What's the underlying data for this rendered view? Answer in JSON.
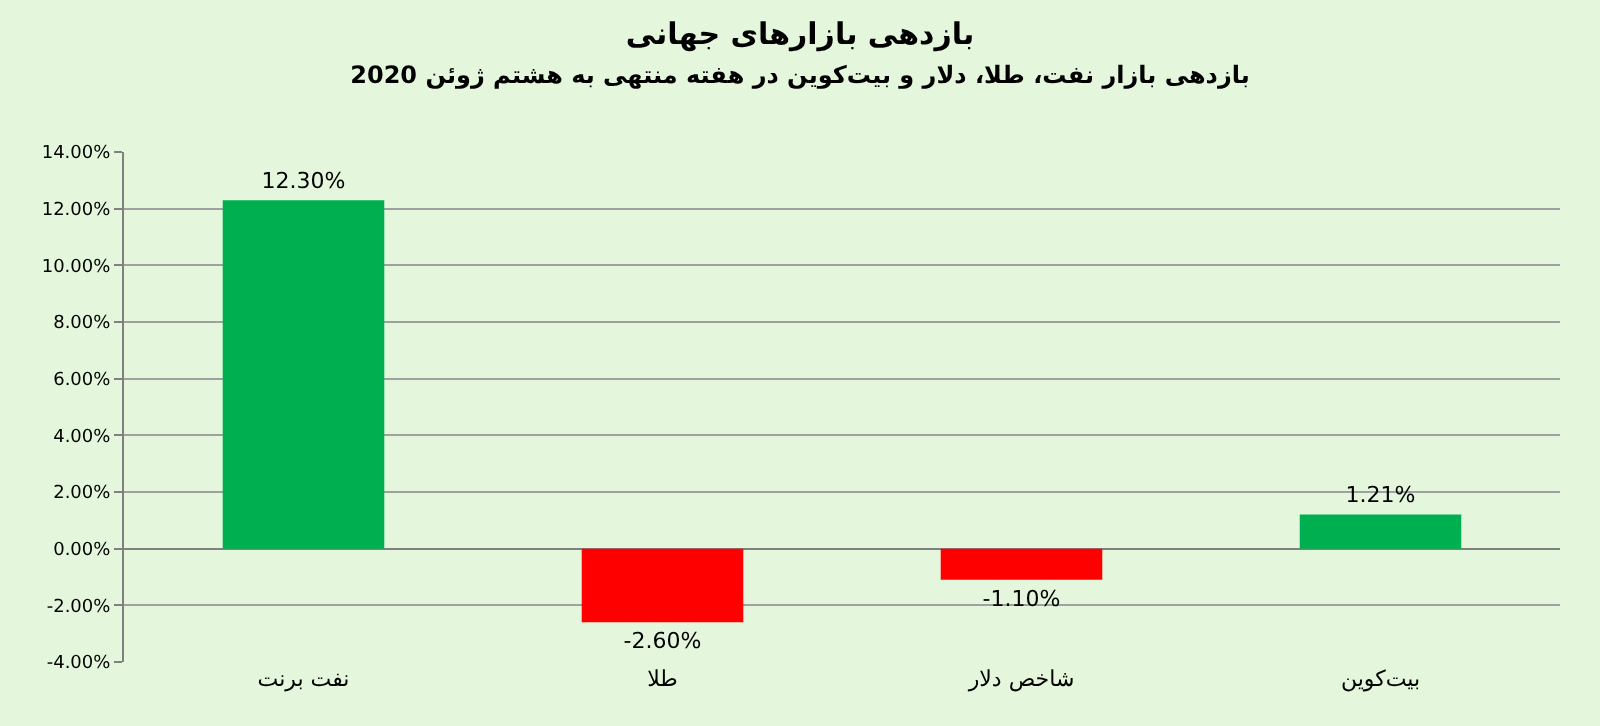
{
  "chart_data": {
    "type": "bar",
    "title": "بازدهی بازارهای جهانی",
    "subtitle": "بازدهی بازار نفت، طلا، دلار و بیت‌کوین در هفته منتهی به هشتم ژوئن 2020",
    "categories": [
      "نفت برنت",
      "طلا",
      "شاخص دلار",
      "بیت‌کوین"
    ],
    "values": [
      12.3,
      -2.6,
      -1.1,
      1.21
    ],
    "colors": [
      "#00b050",
      "#ff0000",
      "#ff0000",
      "#00b050"
    ],
    "value_labels": [
      "12.30%",
      "-2.60%",
      "-1.10%",
      "1.21%"
    ],
    "ylim": [
      -4,
      14
    ],
    "yticks": [
      {
        "value": -4,
        "label": "-4.00%"
      },
      {
        "value": -2,
        "label": "-2.00%"
      },
      {
        "value": 0,
        "label": "0.00%"
      },
      {
        "value": 2,
        "label": "2.00%"
      },
      {
        "value": 4,
        "label": "4.00%"
      },
      {
        "value": 6,
        "label": "6.00%"
      },
      {
        "value": 8,
        "label": "8.00%"
      },
      {
        "value": 10,
        "label": "10.00%"
      },
      {
        "value": 12,
        "label": "12.00%"
      },
      {
        "value": 14,
        "label": "14.00%"
      }
    ],
    "grid": "y"
  }
}
